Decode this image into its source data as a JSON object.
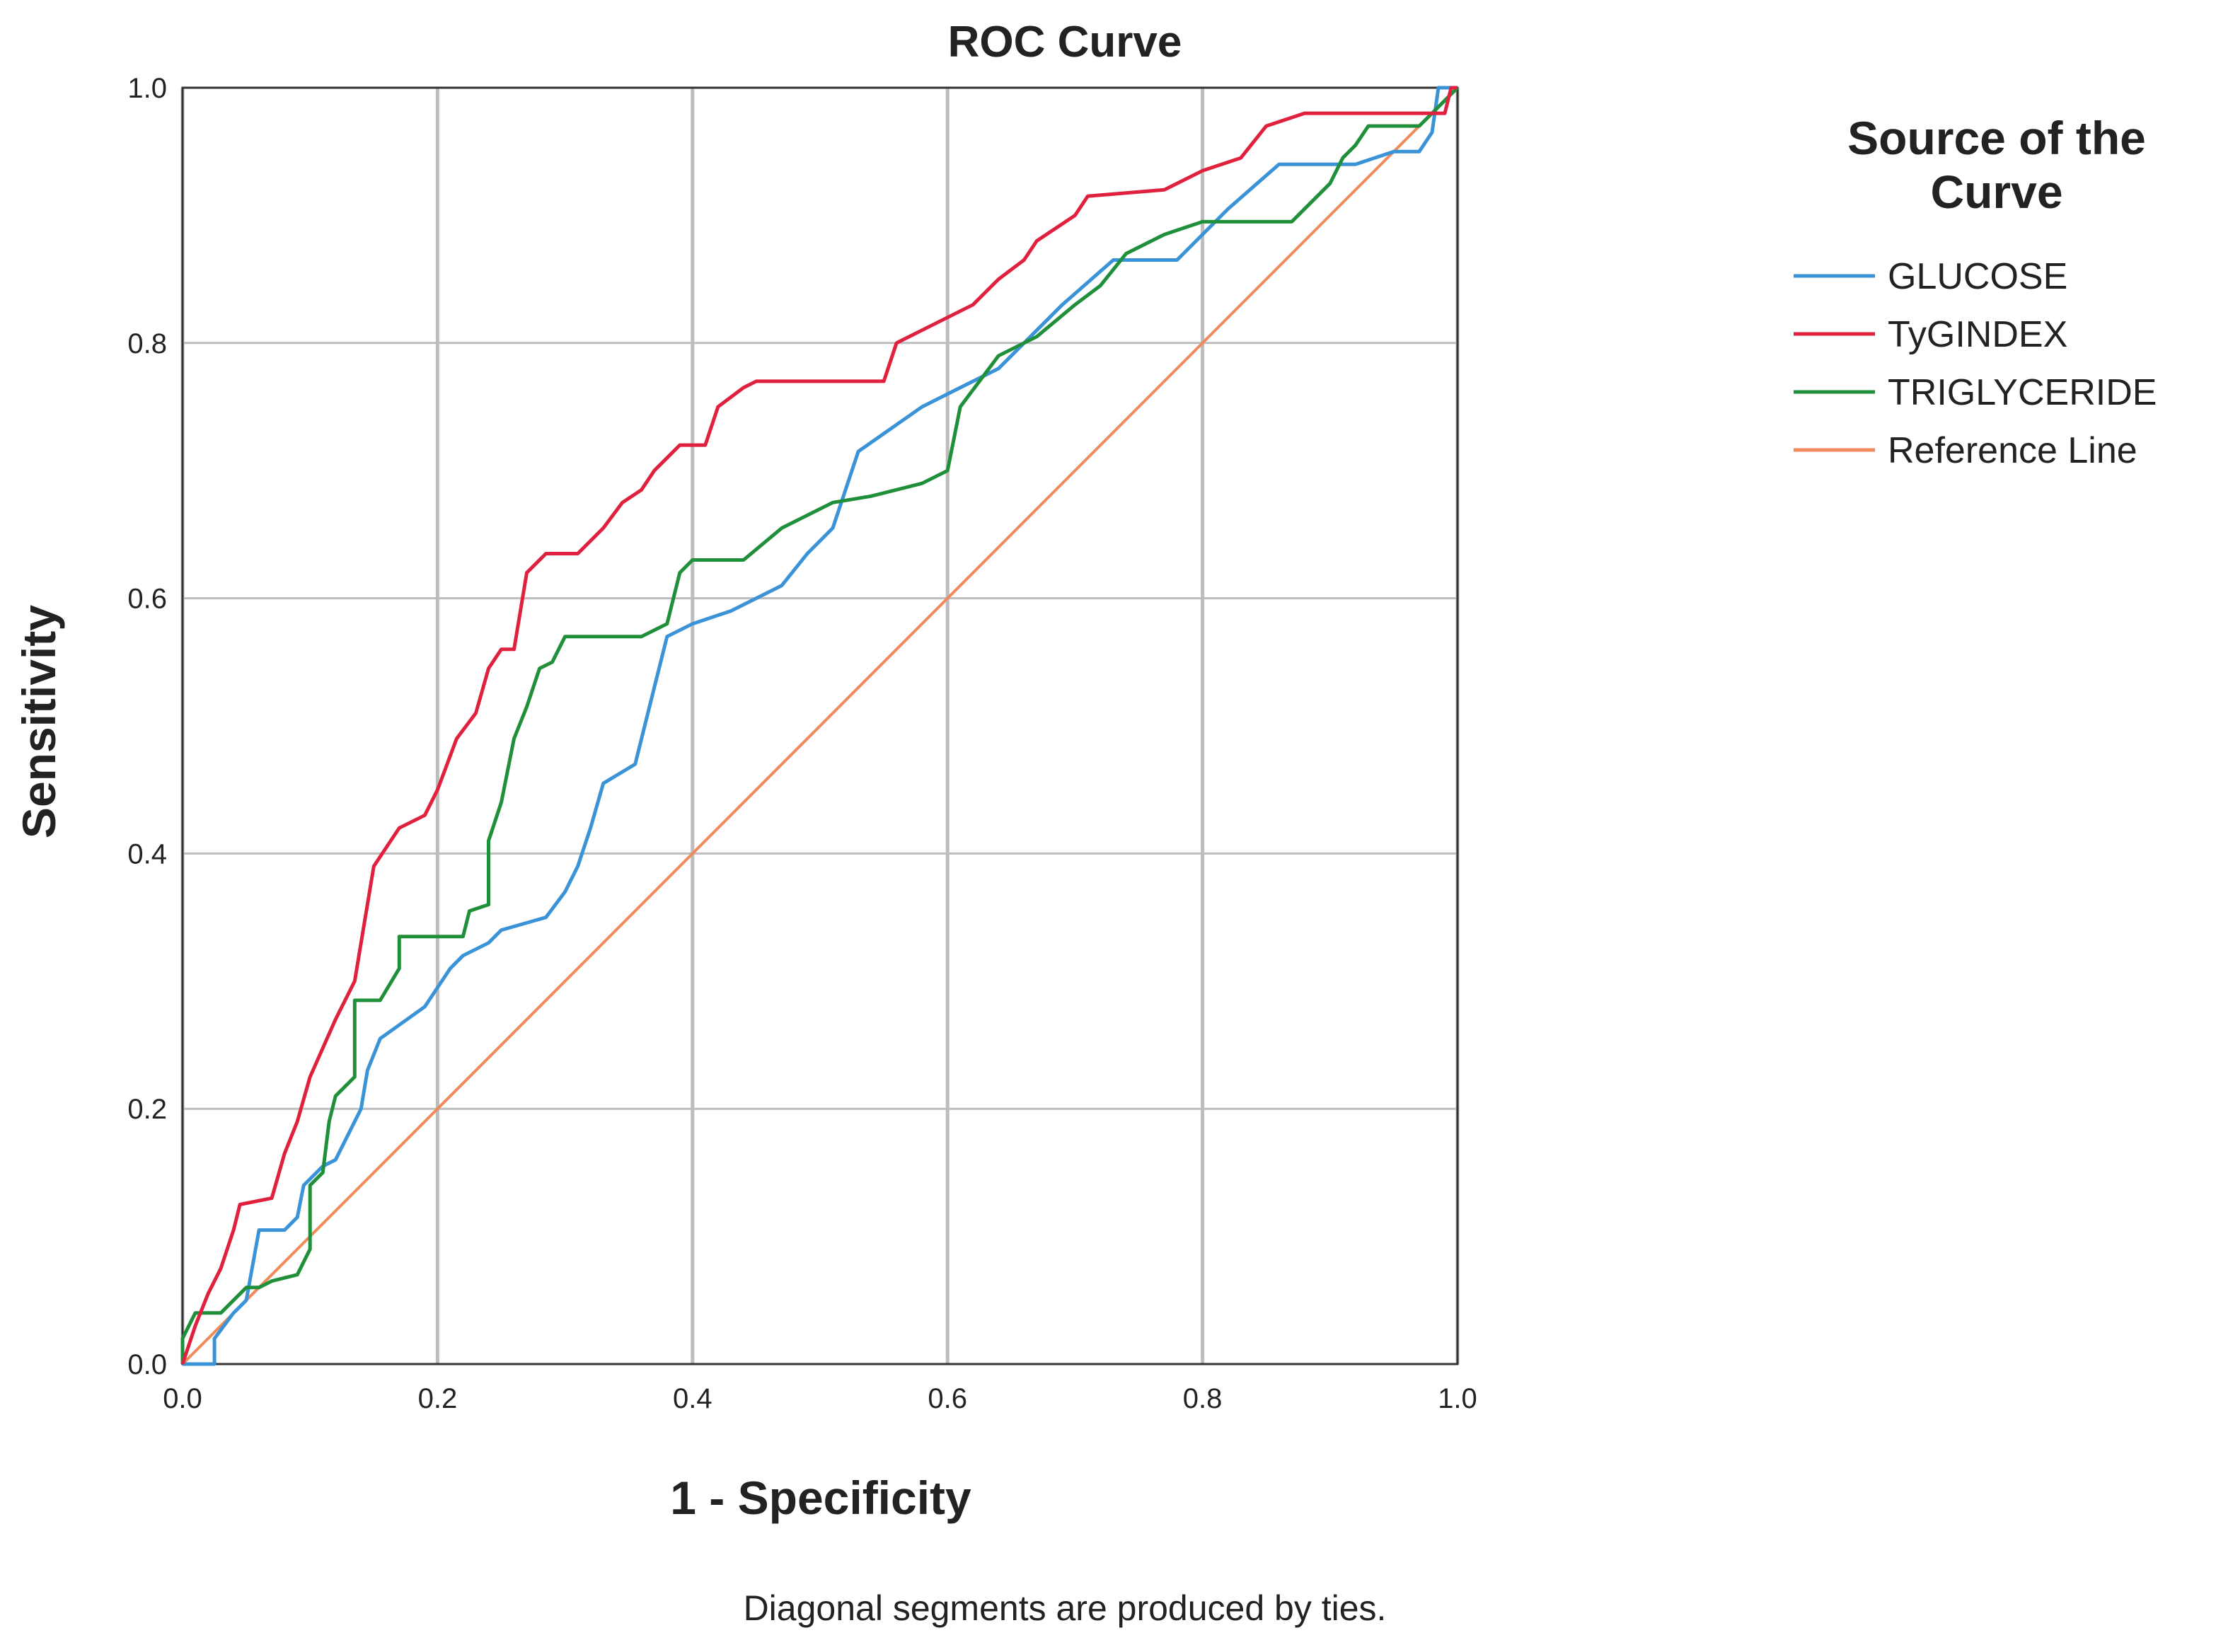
{
  "chart_data": {
    "type": "line",
    "title": "ROC Curve",
    "xlabel": "1 - Specificity",
    "ylabel": "Sensitivity",
    "xlim": [
      0,
      1
    ],
    "ylim": [
      0,
      1
    ],
    "grid": true,
    "xticks": [
      "0.0",
      "0.2",
      "0.4",
      "0.6",
      "0.8",
      "1.0"
    ],
    "yticks": [
      "0.0",
      "0.2",
      "0.4",
      "0.6",
      "0.8",
      "1.0"
    ],
    "legend_title": "Source of the Curve",
    "legend_position": "top-right outside",
    "footnote": "Diagonal segments are produced by ties.",
    "series": [
      {
        "name": "GLUCOSE",
        "color": "#3a93d6",
        "points": [
          [
            0,
            0
          ],
          [
            0.025,
            0
          ],
          [
            0.025,
            0.02
          ],
          [
            0.04,
            0.04
          ],
          [
            0.05,
            0.05
          ],
          [
            0.06,
            0.105
          ],
          [
            0.08,
            0.105
          ],
          [
            0.09,
            0.115
          ],
          [
            0.095,
            0.14
          ],
          [
            0.11,
            0.155
          ],
          [
            0.12,
            0.16
          ],
          [
            0.14,
            0.2
          ],
          [
            0.145,
            0.23
          ],
          [
            0.155,
            0.255
          ],
          [
            0.19,
            0.28
          ],
          [
            0.21,
            0.31
          ],
          [
            0.22,
            0.32
          ],
          [
            0.24,
            0.33
          ],
          [
            0.25,
            0.34
          ],
          [
            0.285,
            0.35
          ],
          [
            0.3,
            0.37
          ],
          [
            0.31,
            0.39
          ],
          [
            0.32,
            0.42
          ],
          [
            0.33,
            0.455
          ],
          [
            0.355,
            0.47
          ],
          [
            0.37,
            0.53
          ],
          [
            0.38,
            0.57
          ],
          [
            0.4,
            0.58
          ],
          [
            0.43,
            0.59
          ],
          [
            0.47,
            0.61
          ],
          [
            0.49,
            0.635
          ],
          [
            0.51,
            0.655
          ],
          [
            0.53,
            0.715
          ],
          [
            0.58,
            0.75
          ],
          [
            0.61,
            0.765
          ],
          [
            0.64,
            0.78
          ],
          [
            0.69,
            0.83
          ],
          [
            0.73,
            0.865
          ],
          [
            0.78,
            0.865
          ],
          [
            0.82,
            0.905
          ],
          [
            0.86,
            0.94
          ],
          [
            0.92,
            0.94
          ],
          [
            0.95,
            0.95
          ],
          [
            0.97,
            0.95
          ],
          [
            0.98,
            0.965
          ],
          [
            0.985,
            1
          ],
          [
            1,
            1
          ]
        ]
      },
      {
        "name": "TyGINDEX",
        "color": "#e0213e",
        "points": [
          [
            0,
            0
          ],
          [
            0.01,
            0.03
          ],
          [
            0.02,
            0.055
          ],
          [
            0.03,
            0.075
          ],
          [
            0.04,
            0.105
          ],
          [
            0.045,
            0.125
          ],
          [
            0.07,
            0.13
          ],
          [
            0.08,
            0.165
          ],
          [
            0.09,
            0.19
          ],
          [
            0.1,
            0.225
          ],
          [
            0.12,
            0.27
          ],
          [
            0.135,
            0.3
          ],
          [
            0.15,
            0.39
          ],
          [
            0.17,
            0.42
          ],
          [
            0.19,
            0.43
          ],
          [
            0.2,
            0.45
          ],
          [
            0.215,
            0.49
          ],
          [
            0.23,
            0.51
          ],
          [
            0.24,
            0.545
          ],
          [
            0.25,
            0.56
          ],
          [
            0.26,
            0.56
          ],
          [
            0.27,
            0.62
          ],
          [
            0.285,
            0.635
          ],
          [
            0.31,
            0.635
          ],
          [
            0.33,
            0.655
          ],
          [
            0.345,
            0.675
          ],
          [
            0.36,
            0.685
          ],
          [
            0.37,
            0.7
          ],
          [
            0.38,
            0.71
          ],
          [
            0.39,
            0.72
          ],
          [
            0.41,
            0.72
          ],
          [
            0.42,
            0.75
          ],
          [
            0.44,
            0.765
          ],
          [
            0.45,
            0.77
          ],
          [
            0.55,
            0.77
          ],
          [
            0.56,
            0.8
          ],
          [
            0.59,
            0.815
          ],
          [
            0.62,
            0.83
          ],
          [
            0.64,
            0.85
          ],
          [
            0.66,
            0.865
          ],
          [
            0.67,
            0.88
          ],
          [
            0.7,
            0.9
          ],
          [
            0.71,
            0.915
          ],
          [
            0.77,
            0.92
          ],
          [
            0.8,
            0.935
          ],
          [
            0.83,
            0.945
          ],
          [
            0.85,
            0.97
          ],
          [
            0.88,
            0.98
          ],
          [
            0.99,
            0.98
          ],
          [
            0.995,
            1
          ],
          [
            1,
            1
          ]
        ]
      },
      {
        "name": "TRIGLYCERIDE",
        "color": "#1f8f3a",
        "points": [
          [
            0,
            0
          ],
          [
            0,
            0.02
          ],
          [
            0.01,
            0.04
          ],
          [
            0.03,
            0.04
          ],
          [
            0.05,
            0.06
          ],
          [
            0.06,
            0.06
          ],
          [
            0.07,
            0.065
          ],
          [
            0.09,
            0.07
          ],
          [
            0.1,
            0.09
          ],
          [
            0.1,
            0.14
          ],
          [
            0.11,
            0.15
          ],
          [
            0.115,
            0.19
          ],
          [
            0.12,
            0.21
          ],
          [
            0.135,
            0.225
          ],
          [
            0.135,
            0.285
          ],
          [
            0.155,
            0.285
          ],
          [
            0.17,
            0.31
          ],
          [
            0.17,
            0.335
          ],
          [
            0.22,
            0.335
          ],
          [
            0.225,
            0.355
          ],
          [
            0.24,
            0.36
          ],
          [
            0.24,
            0.41
          ],
          [
            0.25,
            0.44
          ],
          [
            0.26,
            0.49
          ],
          [
            0.27,
            0.515
          ],
          [
            0.28,
            0.545
          ],
          [
            0.29,
            0.55
          ],
          [
            0.3,
            0.57
          ],
          [
            0.36,
            0.57
          ],
          [
            0.38,
            0.58
          ],
          [
            0.39,
            0.62
          ],
          [
            0.4,
            0.63
          ],
          [
            0.44,
            0.63
          ],
          [
            0.47,
            0.655
          ],
          [
            0.49,
            0.665
          ],
          [
            0.51,
            0.675
          ],
          [
            0.54,
            0.68
          ],
          [
            0.58,
            0.69
          ],
          [
            0.6,
            0.7
          ],
          [
            0.61,
            0.75
          ],
          [
            0.64,
            0.79
          ],
          [
            0.67,
            0.805
          ],
          [
            0.7,
            0.83
          ],
          [
            0.72,
            0.845
          ],
          [
            0.74,
            0.87
          ],
          [
            0.77,
            0.885
          ],
          [
            0.8,
            0.895
          ],
          [
            0.87,
            0.895
          ],
          [
            0.89,
            0.915
          ],
          [
            0.9,
            0.925
          ],
          [
            0.91,
            0.945
          ],
          [
            0.92,
            0.955
          ],
          [
            0.93,
            0.97
          ],
          [
            0.97,
            0.97
          ],
          [
            0.98,
            0.98
          ],
          [
            1,
            1
          ]
        ]
      },
      {
        "name": "Reference Line",
        "color": "#f08a5a",
        "points": [
          [
            0,
            0
          ],
          [
            1,
            1
          ]
        ]
      }
    ]
  }
}
